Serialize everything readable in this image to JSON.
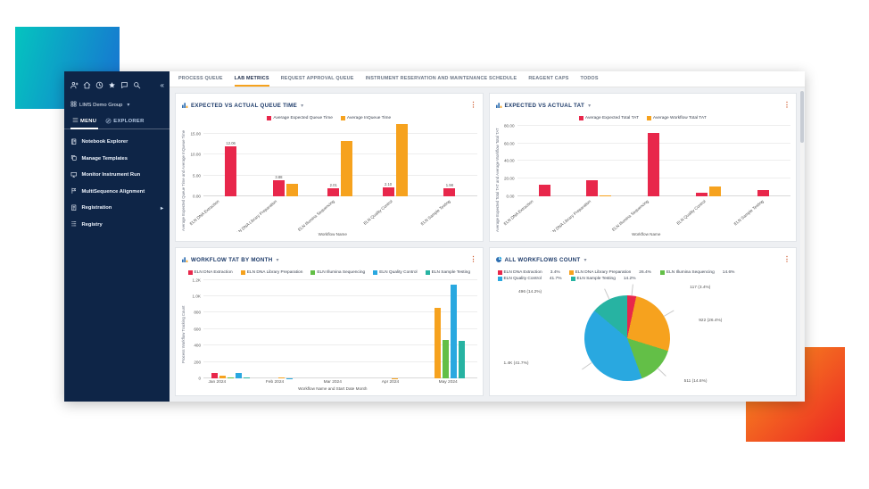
{
  "colors": {
    "red": "#e8274b",
    "orange": "#f6a21e",
    "green": "#63bf47",
    "blue": "#29a8e0",
    "teal": "#27b3a2",
    "sidebar_bg": "#0e2547",
    "active_tab_underline": "#f6a21e",
    "panel_title": "#1c3a69"
  },
  "sidebar": {
    "icon_row": [
      "user-add-icon",
      "home-icon",
      "history-icon",
      "star-icon",
      "chat-icon",
      "search-icon"
    ],
    "collapse_glyph": "«",
    "group_label": "LIMS Demo Group",
    "group_caret": "▾",
    "tabs": [
      {
        "label": "MENU",
        "icon": "menu-icon",
        "active": true
      },
      {
        "label": "EXPLORER",
        "icon": "explorer-icon",
        "active": false
      }
    ],
    "items": [
      {
        "label": "Notebook Explorer",
        "icon": "notebook-icon",
        "submenu": false
      },
      {
        "label": "Manage Templates",
        "icon": "templates-icon",
        "submenu": false
      },
      {
        "label": "Monitor Instrument Run",
        "icon": "monitor-icon",
        "submenu": false
      },
      {
        "label": "MultiSequence Alignment",
        "icon": "alignment-icon",
        "submenu": false
      },
      {
        "label": "Registration",
        "icon": "registration-icon",
        "submenu": true
      },
      {
        "label": "Registry",
        "icon": "registry-icon",
        "submenu": false
      }
    ]
  },
  "topnav": {
    "tabs": [
      {
        "label": "PROCESS QUEUE",
        "active": false
      },
      {
        "label": "LAB METRICS",
        "active": true
      },
      {
        "label": "REQUEST APPROVAL QUEUE",
        "active": false
      },
      {
        "label": "INSTRUMENT RESERVATION AND MAINTENANCE SCHEDULE",
        "active": false
      },
      {
        "label": "REAGENT CAPS",
        "active": false
      },
      {
        "label": "TODOS",
        "active": false
      }
    ]
  },
  "chart_data": [
    {
      "type": "bar",
      "title": "EXPECTED VS ACTUAL QUEUE TIME",
      "title_caret": "▾",
      "categories": [
        "ELN DNA Extraction",
        "ELN DNA Library Preparation",
        "ELN Illumina Sequencing",
        "ELN Quality Control",
        "ELN Sample Testing"
      ],
      "series": [
        {
          "name": "Average Expected Queue Time",
          "color": "#e8274b",
          "values": [
            12.06,
            3.88,
            2.01,
            2.1,
            1.98
          ],
          "value_labels": [
            "12.06",
            "3.88",
            "2.01",
            "2.10",
            "1.98"
          ]
        },
        {
          "name": "Average InQueue Time",
          "color": "#f6a21e",
          "values": [
            0,
            3.06,
            13.3,
            17.3,
            0
          ]
        }
      ],
      "xlabel": "Workflow Name",
      "ylabel": "Average Expected Queue Time and Average InQueue Time",
      "ymax": 18,
      "yticks": [
        {
          "label": "0.00",
          "value": 0
        },
        {
          "label": "5.00",
          "value": 5
        },
        {
          "label": "10.00",
          "value": 10
        },
        {
          "label": "15.00",
          "value": 15
        }
      ],
      "rotate_xticks": true,
      "grid": true,
      "legend_position": "top"
    },
    {
      "type": "bar",
      "title": "EXPECTED VS ACTUAL TAT",
      "title_caret": "▾",
      "categories": [
        "ELN DNA Extraction",
        "ELN DNA Library Preparation",
        "ELN Illumina Sequencing",
        "ELN Quality Control",
        "ELN Sample Testing"
      ],
      "series": [
        {
          "name": "Average Expected Total TAT",
          "color": "#e8274b",
          "values": [
            13,
            18,
            72,
            4.5,
            7.5
          ]
        },
        {
          "name": "Average Workflow Total TAT",
          "color": "#f6a21e",
          "values": [
            0,
            1,
            0,
            11,
            0
          ]
        }
      ],
      "xlabel": "Workflow Name",
      "ylabel": "Average Expected Total TAT and Average Workflow Total TAT",
      "ymax": 85,
      "yticks": [
        {
          "label": "0.00",
          "value": 0
        },
        {
          "label": "20.00",
          "value": 20
        },
        {
          "label": "40.00",
          "value": 40
        },
        {
          "label": "60.00",
          "value": 60
        },
        {
          "label": "80.00",
          "value": 80
        }
      ],
      "rotate_xticks": true,
      "grid": true,
      "legend_position": "top"
    },
    {
      "type": "bar",
      "title": "WORKFLOW TAT BY MONTH",
      "title_caret": "▾",
      "categories": [
        "Jan 2024",
        "Feb 2024",
        "Mar 2024",
        "Apr 2024",
        "May 2024"
      ],
      "series": [
        {
          "name": "ELN DNA Extraction",
          "color": "#e8274b",
          "values": [
            60,
            0,
            0,
            0,
            0
          ]
        },
        {
          "name": "ELN DNA Library Preparation",
          "color": "#f6a21e",
          "values": [
            35,
            6,
            0,
            4,
            860
          ]
        },
        {
          "name": "ELN Illumina Sequencing",
          "color": "#63bf47",
          "values": [
            15,
            0,
            0,
            0,
            470
          ]
        },
        {
          "name": "ELN Quality Control",
          "color": "#29a8e0",
          "values": [
            60,
            4,
            0,
            0,
            1140
          ]
        },
        {
          "name": "ELN Sample Testing",
          "color": "#27b3a2",
          "values": [
            15,
            0,
            0,
            0,
            460
          ]
        }
      ],
      "xlabel": "Workflow Name and Start Date Month",
      "ylabel": "Process Workflow Tracking Count",
      "ymax": 1250,
      "yticks": [
        {
          "label": "0",
          "value": 0
        },
        {
          "label": "200",
          "value": 200
        },
        {
          "label": "400",
          "value": 400
        },
        {
          "label": "600",
          "value": 600
        },
        {
          "label": "800",
          "value": 800
        },
        {
          "label": "1.0K",
          "value": 1000
        },
        {
          "label": "1.2K",
          "value": 1200
        }
      ],
      "rotate_xticks": false,
      "grid": true,
      "legend_position": "top"
    },
    {
      "type": "pie",
      "title": "ALL WORKFLOWS COUNT",
      "title_caret": "▾",
      "slices": [
        {
          "name": "ELN DNA Extraction",
          "pct": 3.4,
          "legend_pct": "3.4%",
          "label": "117 (3.4%)",
          "color": "#e8274b"
        },
        {
          "name": "ELN DNA Library Preparation",
          "pct": 26.4,
          "legend_pct": "26.4%",
          "label": "922 (26.4%)",
          "color": "#f6a21e"
        },
        {
          "name": "ELN Illumina Sequencing",
          "pct": 14.6,
          "legend_pct": "14.6%",
          "label": "511 (14.6%)",
          "color": "#63bf47"
        },
        {
          "name": "ELN Quality Control",
          "pct": 41.7,
          "legend_pct": "41.7%",
          "label": "1.4K (41.7%)",
          "color": "#29a8e0"
        },
        {
          "name": "ELN Sample Testing",
          "pct": 14.2,
          "legend_pct": "14.2%",
          "label": "496 (14.2%)",
          "color": "#27b3a2"
        }
      ],
      "legend_position": "top"
    }
  ]
}
